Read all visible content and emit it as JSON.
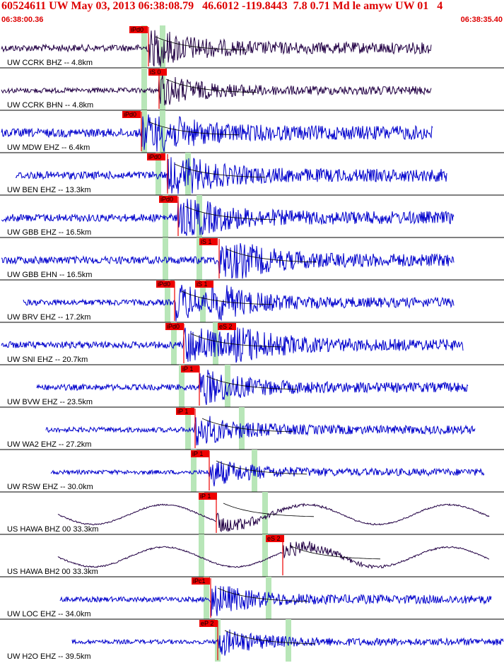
{
  "header": {
    "title": "60524611 UW May 03, 2013 06:38:08.79   46.6012 -119.8443  7.8 0.71 Md le amyw UW 01   4",
    "start_time": "06:38:00.36",
    "end_time": "06:38:35.40"
  },
  "colors": {
    "header_text": "#dd0000",
    "trace_blue": "#0000cc",
    "trace_dark": "#220044",
    "pick_box": "#ee0000",
    "window_band": "#b8e6b8",
    "coda_curve": "#000000",
    "separator": "#000000"
  },
  "traces": [
    {
      "label": "UW CCRK BHZ -- 4.8km",
      "pick1": "iPd0",
      "pick2": "",
      "color": "dark"
    },
    {
      "label": "UW CCRK BHN -- 4.8km",
      "pick1": "iS 0",
      "pick2": "",
      "color": "dark"
    },
    {
      "label": "UW MDW EHZ -- 6.4km",
      "pick1": "iPd0",
      "pick2": "",
      "color": "blue"
    },
    {
      "label": "UW BEN EHZ -- 13.3km",
      "pick1": "iPd0",
      "pick2": "",
      "color": "blue"
    },
    {
      "label": "UW GBB EHZ -- 16.5km",
      "pick1": "iPd0",
      "pick2": "",
      "color": "blue"
    },
    {
      "label": "UW GBB EHN -- 16.5km",
      "pick1": "iS 1",
      "pick2": "",
      "color": "blue"
    },
    {
      "label": "UW BRV EHZ -- 17.2km",
      "pick1": "iPd0",
      "pick2": "iS 1",
      "color": "blue"
    },
    {
      "label": "UW SNI EHZ -- 20.7km",
      "pick1": "iPd0",
      "pick2": "eS 2",
      "color": "blue"
    },
    {
      "label": "UW BVW EHZ -- 23.5km",
      "pick1": "iP 1",
      "pick2": "",
      "color": "blue"
    },
    {
      "label": "UW WA2 EHZ -- 27.2km",
      "pick1": "iP 1",
      "pick2": "",
      "color": "blue"
    },
    {
      "label": "UW RSW EHZ -- 30.0km",
      "pick1": "iP 1",
      "pick2": "",
      "color": "blue"
    },
    {
      "label": "US HAWA BHZ 00 33.3km",
      "pick1": "iP 1",
      "pick2": "",
      "color": "dark"
    },
    {
      "label": "US HAWA BH2 00 33.3km",
      "pick1": "eS 2",
      "pick2": "",
      "color": "dark"
    },
    {
      "label": "UW LOC EHZ -- 34.0km",
      "pick1": "iPc1",
      "pick2": "",
      "color": "blue"
    },
    {
      "label": "UW H2O EHZ -- 39.5km",
      "pick1": "eP 2",
      "pick2": "",
      "color": "blue"
    }
  ]
}
